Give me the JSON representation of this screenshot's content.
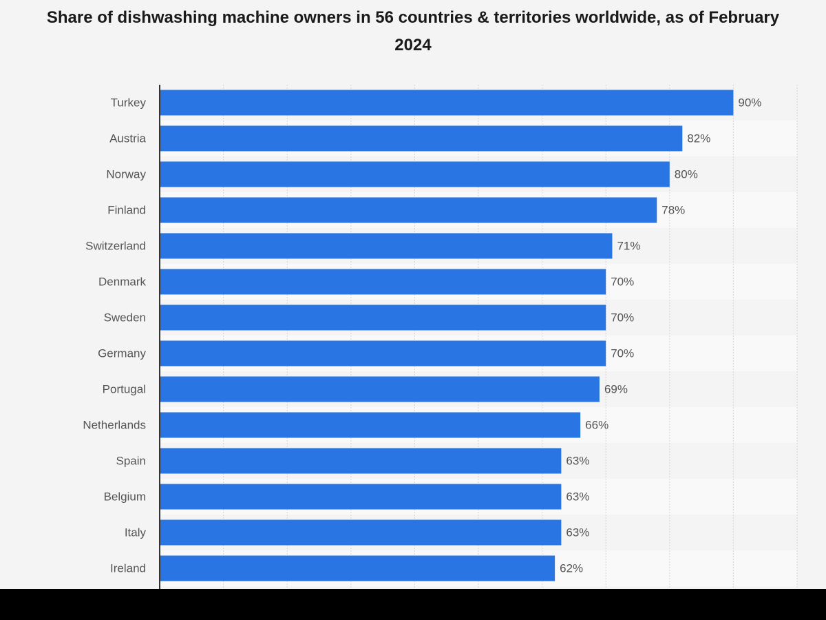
{
  "chart_data": {
    "type": "bar",
    "orientation": "horizontal",
    "title": "Share of dishwashing machine owners in 56 countries & territories worldwide, as of February 2024",
    "categories": [
      "Turkey",
      "Austria",
      "Norway",
      "Finland",
      "Switzerland",
      "Denmark",
      "Sweden",
      "Germany",
      "Portugal",
      "Netherlands",
      "Spain",
      "Belgium",
      "Italy",
      "Ireland"
    ],
    "values": [
      90,
      82,
      80,
      78,
      71,
      70,
      70,
      70,
      69,
      66,
      63,
      63,
      63,
      62
    ],
    "value_labels": [
      "90%",
      "82%",
      "80%",
      "78%",
      "71%",
      "70%",
      "70%",
      "70%",
      "69%",
      "66%",
      "63%",
      "63%",
      "63%",
      "62%"
    ],
    "xlim": [
      0,
      100
    ],
    "grid": true,
    "bar_color": "#2875e3"
  }
}
